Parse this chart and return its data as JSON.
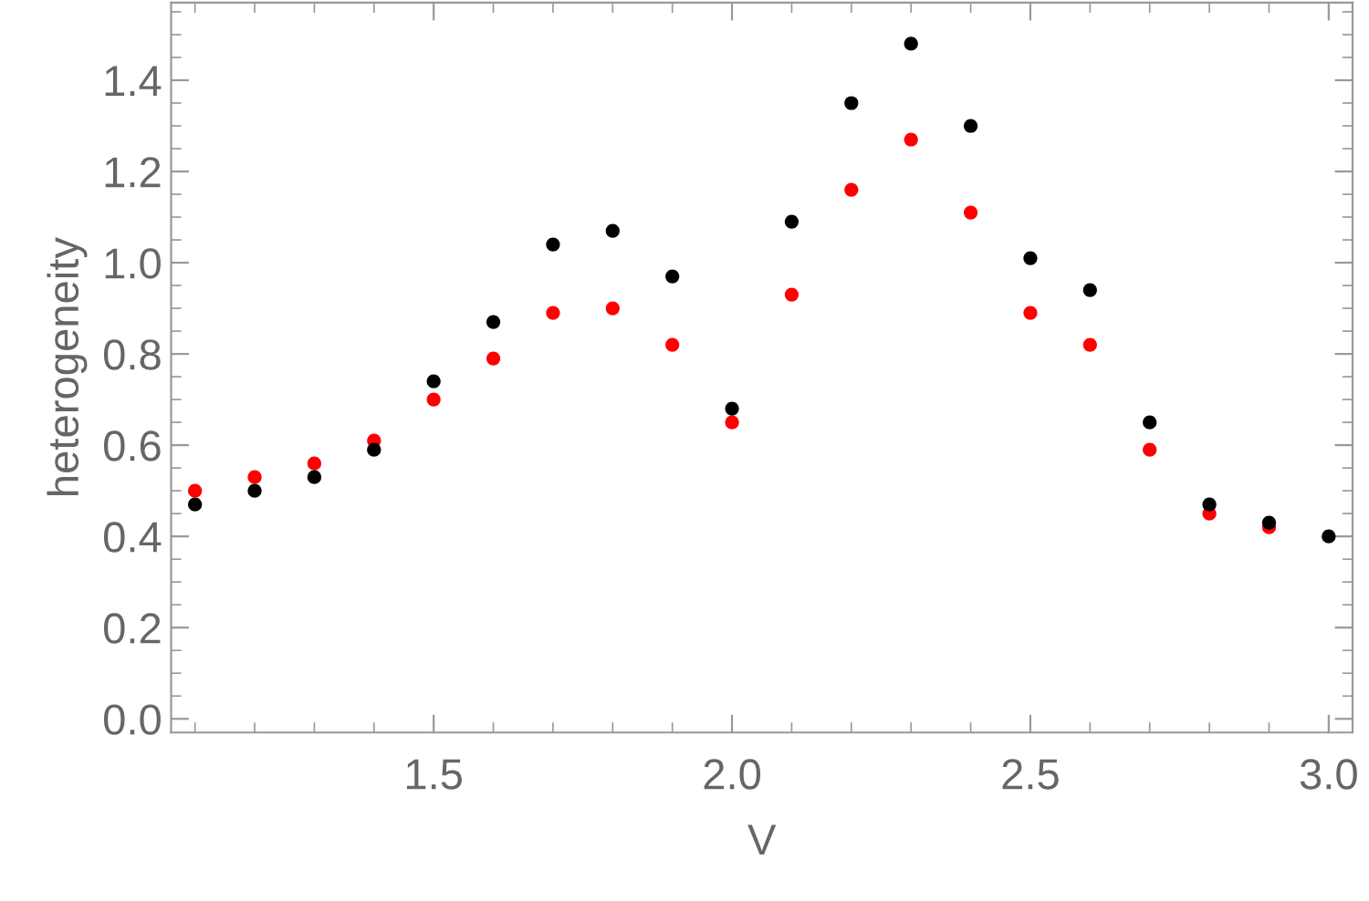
{
  "chart_data": {
    "type": "scatter",
    "xlabel": "V",
    "ylabel": "heterogeneity",
    "x": [
      1.1,
      1.2,
      1.3,
      1.4,
      1.5,
      1.6,
      1.7,
      1.8,
      1.9,
      2.0,
      2.1,
      2.2,
      2.3,
      2.4,
      2.5,
      2.6,
      2.7,
      2.8,
      2.9,
      3.0
    ],
    "series": [
      {
        "color": "#ff0000",
        "values": [
          0.5,
          0.53,
          0.56,
          0.61,
          0.7,
          0.79,
          0.89,
          0.9,
          0.82,
          0.65,
          0.93,
          1.16,
          1.27,
          1.11,
          0.89,
          0.82,
          0.59,
          0.45,
          0.42,
          null
        ]
      },
      {
        "color": "#000000",
        "values": [
          0.47,
          0.5,
          0.53,
          0.59,
          0.74,
          0.87,
          1.04,
          1.07,
          0.97,
          0.68,
          1.09,
          1.35,
          1.48,
          1.3,
          1.01,
          0.94,
          0.65,
          0.47,
          0.43,
          0.4
        ]
      }
    ],
    "xlim": [
      1.06,
      3.04
    ],
    "ylim": [
      -0.03,
      1.57
    ],
    "xticks": [
      {
        "value": 1.1,
        "label": null
      },
      {
        "value": 1.2,
        "label": null
      },
      {
        "value": 1.3,
        "label": null
      },
      {
        "value": 1.4,
        "label": null
      },
      {
        "value": 1.5,
        "label": "1.5"
      },
      {
        "value": 1.6,
        "label": null
      },
      {
        "value": 1.7,
        "label": null
      },
      {
        "value": 1.8,
        "label": null
      },
      {
        "value": 1.9,
        "label": null
      },
      {
        "value": 2.0,
        "label": "2.0"
      },
      {
        "value": 2.1,
        "label": null
      },
      {
        "value": 2.2,
        "label": null
      },
      {
        "value": 2.3,
        "label": null
      },
      {
        "value": 2.4,
        "label": null
      },
      {
        "value": 2.5,
        "label": "2.5"
      },
      {
        "value": 2.6,
        "label": null
      },
      {
        "value": 2.7,
        "label": null
      },
      {
        "value": 2.8,
        "label": null
      },
      {
        "value": 2.9,
        "label": null
      },
      {
        "value": 3.0,
        "label": "3.0"
      }
    ],
    "yticks": [
      {
        "value": 0.0,
        "label": "0.0"
      },
      {
        "value": 0.05,
        "label": null
      },
      {
        "value": 0.1,
        "label": null
      },
      {
        "value": 0.15,
        "label": null
      },
      {
        "value": 0.2,
        "label": "0.2"
      },
      {
        "value": 0.25,
        "label": null
      },
      {
        "value": 0.3,
        "label": null
      },
      {
        "value": 0.35,
        "label": null
      },
      {
        "value": 0.4,
        "label": "0.4"
      },
      {
        "value": 0.45,
        "label": null
      },
      {
        "value": 0.5,
        "label": null
      },
      {
        "value": 0.55,
        "label": null
      },
      {
        "value": 0.6,
        "label": "0.6"
      },
      {
        "value": 0.65,
        "label": null
      },
      {
        "value": 0.7,
        "label": null
      },
      {
        "value": 0.75,
        "label": null
      },
      {
        "value": 0.8,
        "label": "0.8"
      },
      {
        "value": 0.85,
        "label": null
      },
      {
        "value": 0.9,
        "label": null
      },
      {
        "value": 0.95,
        "label": null
      },
      {
        "value": 1.0,
        "label": "1.0"
      },
      {
        "value": 1.05,
        "label": null
      },
      {
        "value": 1.1,
        "label": null
      },
      {
        "value": 1.15,
        "label": null
      },
      {
        "value": 1.2,
        "label": "1.2"
      },
      {
        "value": 1.25,
        "label": null
      },
      {
        "value": 1.3,
        "label": null
      },
      {
        "value": 1.35,
        "label": null
      },
      {
        "value": 1.4,
        "label": "1.4"
      },
      {
        "value": 1.45,
        "label": null
      },
      {
        "value": 1.5,
        "label": null
      },
      {
        "value": 1.55,
        "label": null
      }
    ],
    "marker": "circle",
    "grid": false,
    "legend": false
  }
}
